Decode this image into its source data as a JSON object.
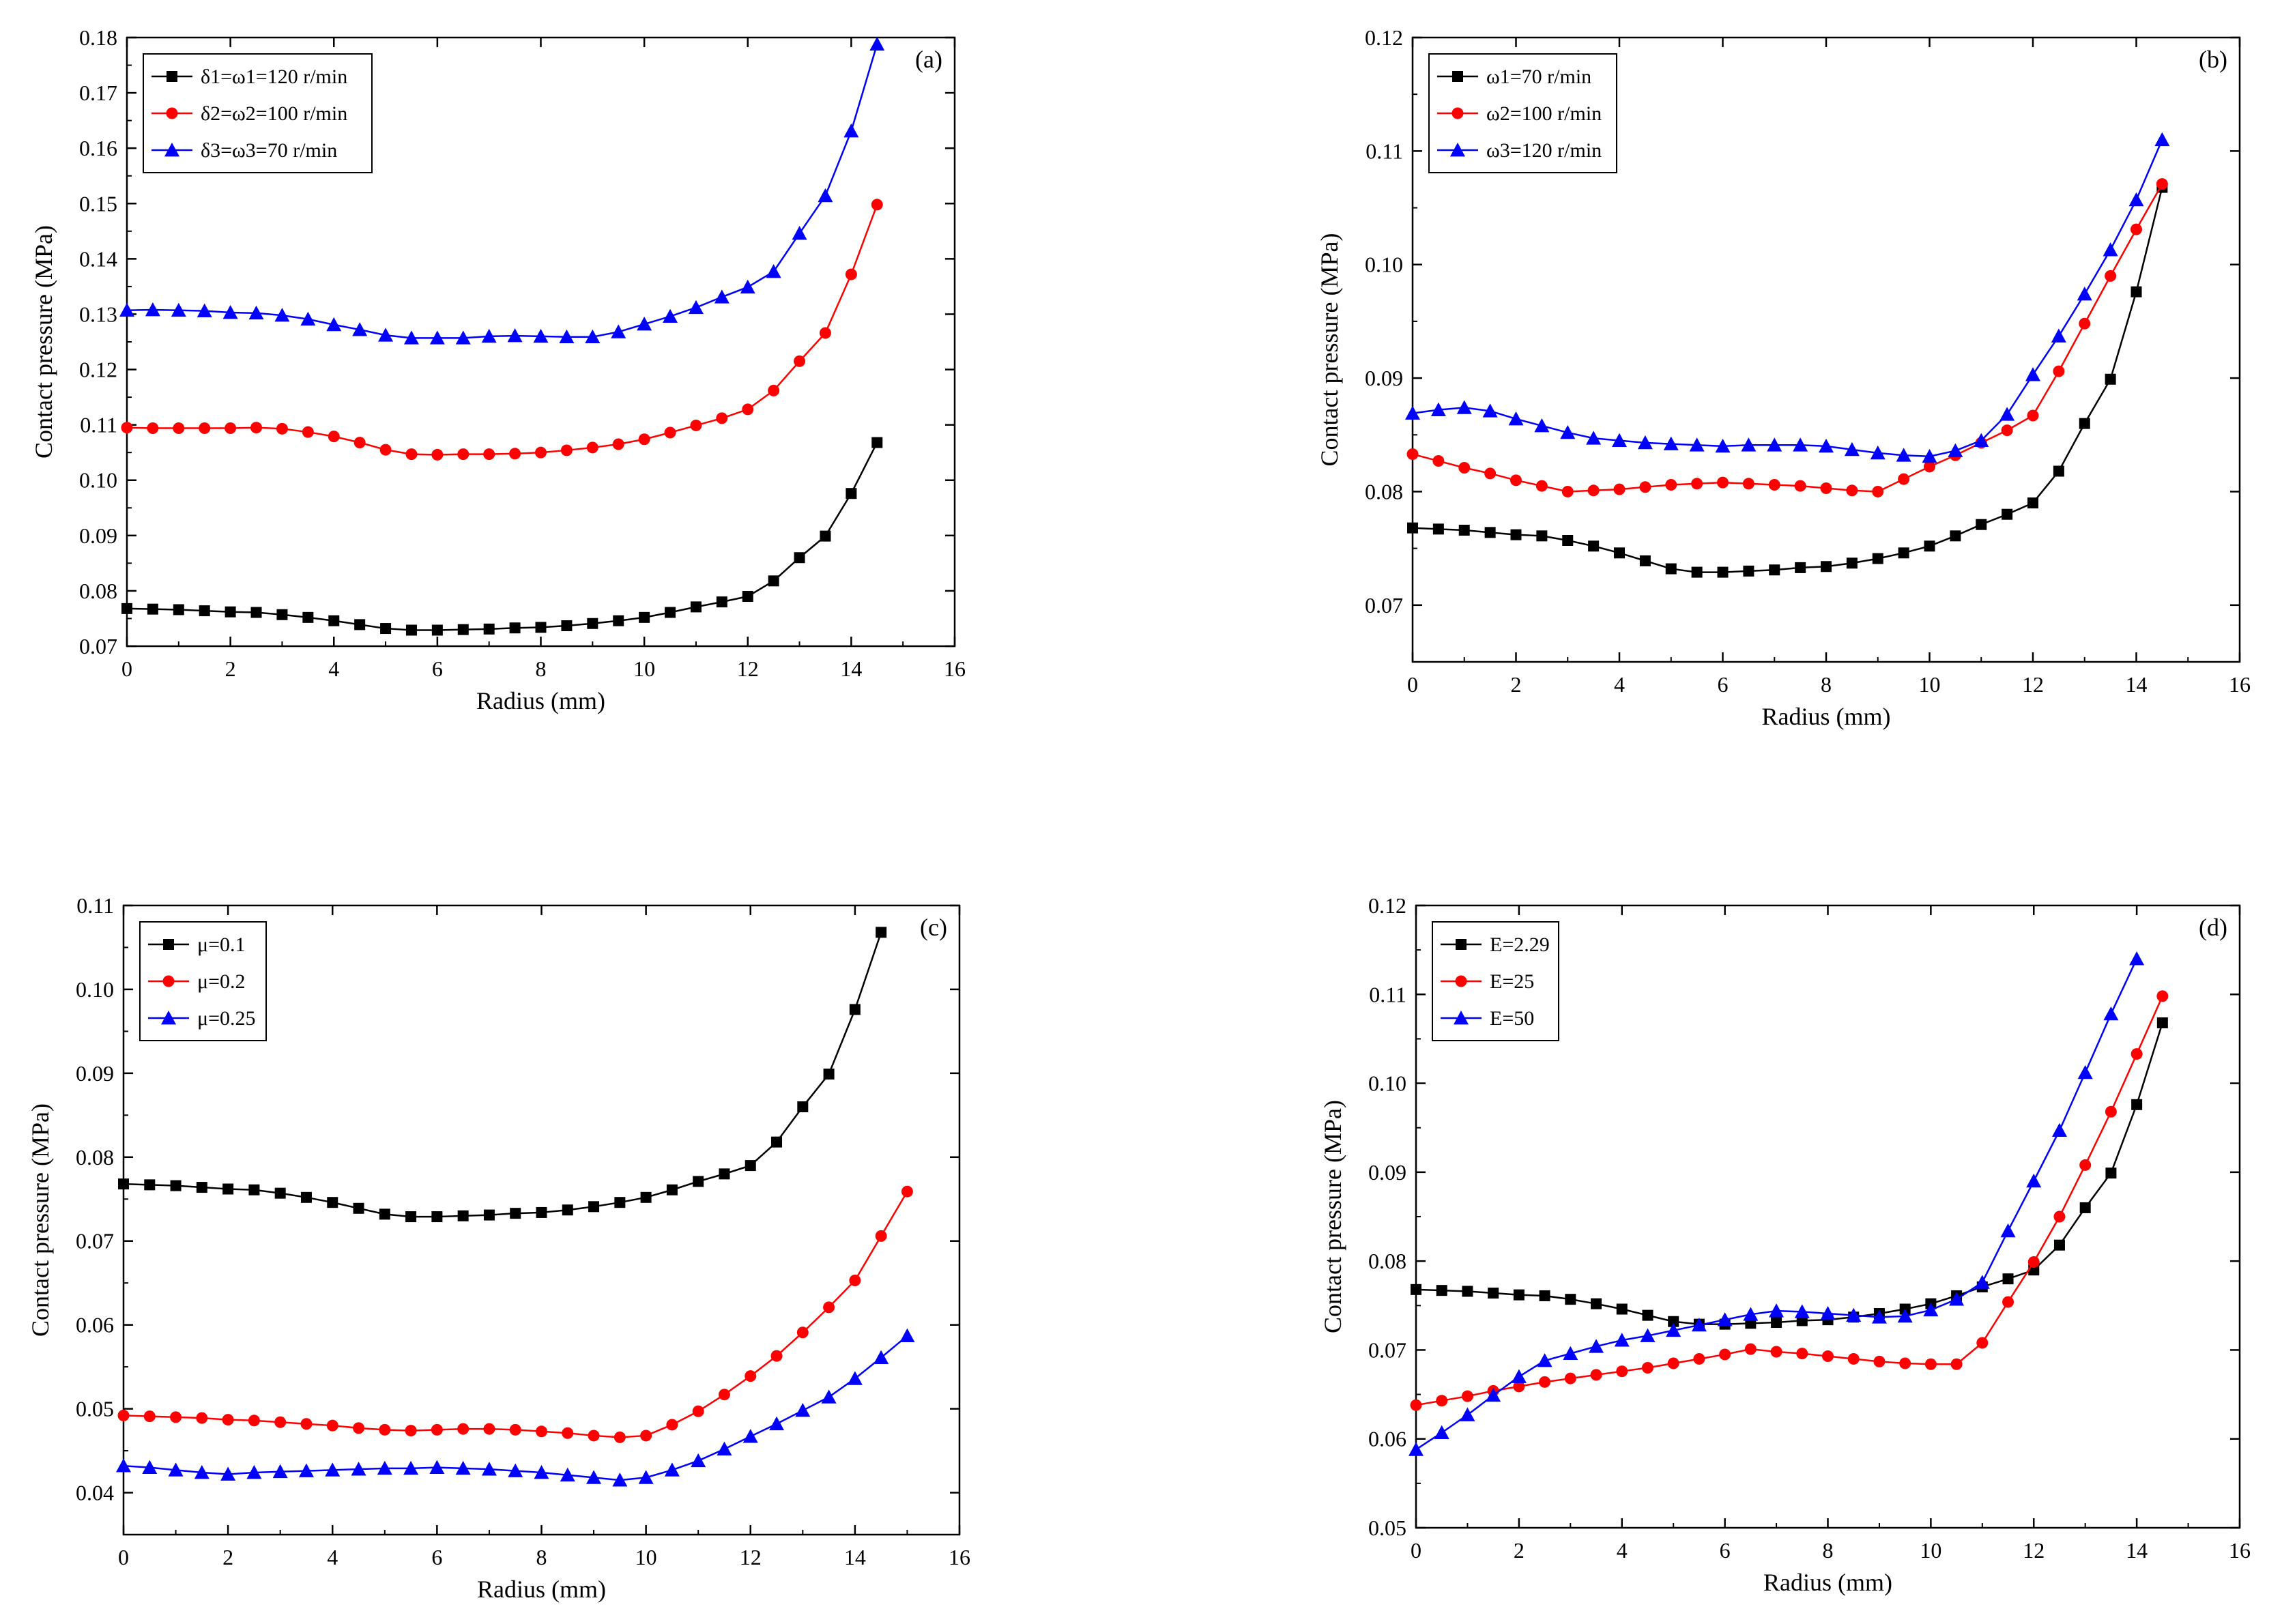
{
  "chart_data": [
    {
      "type": "line",
      "panel_label": "(a)",
      "xlabel": "Radius (mm)",
      "ylabel": "Contact pressure (MPa)",
      "xlim": [
        0,
        16
      ],
      "ylim": [
        0.07,
        0.18
      ],
      "xticks": [
        0,
        2,
        4,
        6,
        8,
        10,
        12,
        14,
        16
      ],
      "xtick_labels": [
        "0",
        "2",
        "4",
        "6",
        "8",
        "10",
        "12",
        "14",
        "16"
      ],
      "yticks": [
        0.07,
        0.08,
        0.09,
        0.1,
        0.11,
        0.12,
        0.13,
        0.14,
        0.15,
        0.16,
        0.17,
        0.18
      ],
      "ytick_labels": [
        "0.07",
        "0.08",
        "0.09",
        "0.10",
        "0.11",
        "0.12",
        "0.13",
        "0.14",
        "0.15",
        "0.16",
        "0.17",
        "0.18"
      ],
      "grid": false,
      "legend_position": "top-left",
      "x": [
        0,
        0.5,
        1,
        1.5,
        2,
        2.5,
        3,
        3.5,
        4,
        4.5,
        5,
        5.5,
        6,
        6.5,
        7,
        7.5,
        8,
        8.5,
        9,
        9.5,
        10,
        10.5,
        11,
        11.5,
        12,
        12.5,
        13,
        13.5,
        14,
        14.5
      ],
      "series": [
        {
          "name": "δ1=ω1=120 r/min",
          "color": "#000000",
          "marker": "square",
          "values": [
            0.0768,
            0.0767,
            0.0766,
            0.0764,
            0.0762,
            0.0761,
            0.0757,
            0.0752,
            0.0746,
            0.0739,
            0.0732,
            0.0729,
            0.0729,
            0.073,
            0.0731,
            0.0733,
            0.0734,
            0.0737,
            0.0741,
            0.0746,
            0.0752,
            0.0761,
            0.0771,
            0.078,
            0.079,
            0.0818,
            0.086,
            0.0899,
            0.0976,
            0.1068
          ]
        },
        {
          "name": "δ2=ω2=100 r/min",
          "color": "#ff0000",
          "marker": "circle",
          "values": [
            0.1095,
            0.1094,
            0.1094,
            0.1094,
            0.1094,
            0.1095,
            0.1093,
            0.1087,
            0.1079,
            0.1068,
            0.1055,
            0.1047,
            0.1046,
            0.1047,
            0.1047,
            0.1048,
            0.105,
            0.1054,
            0.1059,
            0.1065,
            0.1074,
            0.1086,
            0.1099,
            0.1112,
            0.1128,
            0.1162,
            0.1215,
            0.1266,
            0.1372,
            0.1498
          ]
        },
        {
          "name": "δ3=ω3=70   r/min",
          "color": "#0000ff",
          "marker": "triangle",
          "values": [
            0.1307,
            0.1308,
            0.1307,
            0.1306,
            0.1303,
            0.1302,
            0.1298,
            0.1291,
            0.1281,
            0.1272,
            0.1262,
            0.1257,
            0.1257,
            0.1257,
            0.126,
            0.1261,
            0.126,
            0.1259,
            0.1259,
            0.1268,
            0.1282,
            0.1296,
            0.1312,
            0.1331,
            0.1349,
            0.1377,
            0.1446,
            0.1514,
            0.1631,
            0.1788
          ]
        }
      ]
    },
    {
      "type": "line",
      "panel_label": "(b)",
      "xlabel": "Radius (mm)",
      "ylabel": "Contact pressure (MPa)",
      "xlim": [
        0,
        16
      ],
      "ylim": [
        0.065,
        0.12
      ],
      "xticks": [
        0,
        2,
        4,
        6,
        8,
        10,
        12,
        14,
        16
      ],
      "xtick_labels": [
        "0",
        "2",
        "4",
        "6",
        "8",
        "10",
        "12",
        "14",
        "16"
      ],
      "yticks": [
        0.07,
        0.08,
        0.09,
        0.1,
        0.11,
        0.12
      ],
      "ytick_labels": [
        "0.07",
        "0.08",
        "0.09",
        "0.10",
        "0.11",
        "0.12"
      ],
      "grid": false,
      "legend_position": "top-left",
      "x": [
        0,
        0.5,
        1,
        1.5,
        2,
        2.5,
        3,
        3.5,
        4,
        4.5,
        5,
        5.5,
        6,
        6.5,
        7,
        7.5,
        8,
        8.5,
        9,
        9.5,
        10,
        10.5,
        11,
        11.5,
        12,
        12.5,
        13,
        13.5,
        14,
        14.5
      ],
      "series": [
        {
          "name": "ω1=70 r/min",
          "color": "#000000",
          "marker": "square",
          "values": [
            0.0768,
            0.0767,
            0.0766,
            0.0764,
            0.0762,
            0.0761,
            0.0757,
            0.0752,
            0.0746,
            0.0739,
            0.0732,
            0.0729,
            0.0729,
            0.073,
            0.0731,
            0.0733,
            0.0734,
            0.0737,
            0.0741,
            0.0746,
            0.0752,
            0.0761,
            0.0771,
            0.078,
            0.079,
            0.0818,
            0.086,
            0.0899,
            0.0976,
            0.1068
          ]
        },
        {
          "name": "ω2=100 r/min",
          "color": "#ff0000",
          "marker": "circle",
          "values": [
            0.0833,
            0.0827,
            0.0821,
            0.0816,
            0.081,
            0.0805,
            0.08,
            0.0801,
            0.0802,
            0.0804,
            0.0806,
            0.0807,
            0.0808,
            0.0807,
            0.0806,
            0.0805,
            0.0803,
            0.0801,
            0.08,
            0.0811,
            0.0822,
            0.0832,
            0.0843,
            0.0854,
            0.0867,
            0.0906,
            0.0948,
            0.099,
            0.1031,
            0.1071
          ]
        },
        {
          "name": "ω3=120 r/min",
          "color": "#0000ff",
          "marker": "triangle",
          "values": [
            0.0869,
            0.0872,
            0.0874,
            0.0871,
            0.0864,
            0.0858,
            0.0852,
            0.0847,
            0.0845,
            0.0843,
            0.0842,
            0.0841,
            0.084,
            0.0841,
            0.0841,
            0.0841,
            0.084,
            0.0837,
            0.0834,
            0.0832,
            0.0831,
            0.0836,
            0.0845,
            0.0868,
            0.0903,
            0.0937,
            0.0974,
            0.1013,
            0.1057,
            0.111
          ]
        }
      ]
    },
    {
      "type": "line",
      "panel_label": "(c)",
      "xlabel": "Radius (mm)",
      "ylabel": "Contact pressure (MPa)",
      "xlim": [
        0,
        16
      ],
      "ylim": [
        0.035,
        0.11
      ],
      "xticks": [
        0,
        2,
        4,
        6,
        8,
        10,
        12,
        14,
        16
      ],
      "xtick_labels": [
        "0",
        "2",
        "4",
        "6",
        "8",
        "10",
        "12",
        "14",
        "16"
      ],
      "yticks": [
        0.04,
        0.05,
        0.06,
        0.07,
        0.08,
        0.09,
        0.1,
        0.11
      ],
      "ytick_labels": [
        "0.04",
        "0.05",
        "0.06",
        "0.07",
        "0.08",
        "0.09",
        "0.10",
        "0.11"
      ],
      "grid": false,
      "legend_position": "top-left",
      "x": [
        0,
        0.5,
        1,
        1.5,
        2,
        2.5,
        3,
        3.5,
        4,
        4.5,
        5,
        5.5,
        6,
        6.5,
        7,
        7.5,
        8,
        8.5,
        9,
        9.5,
        10,
        10.5,
        11,
        11.5,
        12,
        12.5,
        13,
        13.5,
        14,
        14.5,
        15
      ],
      "series": [
        {
          "name": "μ=0.1",
          "color": "#000000",
          "marker": "square",
          "values": [
            0.0768,
            0.0767,
            0.0766,
            0.0764,
            0.0762,
            0.0761,
            0.0757,
            0.0752,
            0.0746,
            0.0739,
            0.0732,
            0.0729,
            0.0729,
            0.073,
            0.0731,
            0.0733,
            0.0734,
            0.0737,
            0.0741,
            0.0746,
            0.0752,
            0.0761,
            0.0771,
            0.078,
            0.079,
            0.0818,
            0.086,
            0.0899,
            0.0976,
            0.1068,
            null
          ]
        },
        {
          "name": "μ=0.2",
          "color": "#ff0000",
          "marker": "circle",
          "values": [
            0.0492,
            0.0491,
            0.049,
            0.0489,
            0.0487,
            0.0486,
            0.0484,
            0.0482,
            0.048,
            0.0477,
            0.0475,
            0.0474,
            0.0475,
            0.0476,
            0.0476,
            0.0475,
            0.0473,
            0.0471,
            0.0468,
            0.0466,
            0.0468,
            0.0481,
            0.0497,
            0.0517,
            0.0539,
            0.0563,
            0.0591,
            0.0621,
            0.0653,
            0.0706,
            0.0759
          ]
        },
        {
          "name": "μ=0.25",
          "color": "#0000ff",
          "marker": "triangle",
          "values": [
            0.0432,
            0.043,
            0.0427,
            0.0424,
            0.0422,
            0.0424,
            0.0425,
            0.0426,
            0.0427,
            0.0428,
            0.0429,
            0.0429,
            0.043,
            0.0429,
            0.0428,
            0.0426,
            0.0424,
            0.0421,
            0.0418,
            0.0415,
            0.0418,
            0.0427,
            0.0438,
            0.0452,
            0.0467,
            0.0482,
            0.0498,
            0.0514,
            0.0536,
            0.0561,
            0.0587
          ]
        }
      ]
    },
    {
      "type": "line",
      "panel_label": "(d)",
      "xlabel": "Radius (mm)",
      "ylabel": "Contact pressure (MPa)",
      "xlim": [
        0,
        16
      ],
      "ylim": [
        0.05,
        0.12
      ],
      "xticks": [
        0,
        2,
        4,
        6,
        8,
        10,
        12,
        14,
        16
      ],
      "xtick_labels": [
        "0",
        "2",
        "4",
        "6",
        "8",
        "10",
        "12",
        "14",
        "16"
      ],
      "yticks": [
        0.05,
        0.06,
        0.07,
        0.08,
        0.09,
        0.1,
        0.11,
        0.12
      ],
      "ytick_labels": [
        "0.05",
        "0.06",
        "0.07",
        "0.08",
        "0.09",
        "0.10",
        "0.11",
        "0.12"
      ],
      "grid": false,
      "legend_position": "top-left",
      "x": [
        0,
        0.5,
        1,
        1.5,
        2,
        2.5,
        3,
        3.5,
        4,
        4.5,
        5,
        5.5,
        6,
        6.5,
        7,
        7.5,
        8,
        8.5,
        9,
        9.5,
        10,
        10.5,
        11,
        11.5,
        12,
        12.5,
        13,
        13.5,
        14,
        14.5
      ],
      "series": [
        {
          "name": "E=2.29",
          "color": "#000000",
          "marker": "square",
          "values": [
            0.0768,
            0.0767,
            0.0766,
            0.0764,
            0.0762,
            0.0761,
            0.0757,
            0.0752,
            0.0746,
            0.0739,
            0.0732,
            0.0729,
            0.0729,
            0.073,
            0.0731,
            0.0733,
            0.0734,
            0.0737,
            0.0741,
            0.0746,
            0.0752,
            0.0761,
            0.0771,
            0.078,
            0.079,
            0.0818,
            0.086,
            0.0899,
            0.0976,
            0.1068
          ]
        },
        {
          "name": "E=25",
          "color": "#ff0000",
          "marker": "circle",
          "values": [
            0.0638,
            0.0643,
            0.0648,
            0.0654,
            0.0659,
            0.0664,
            0.0668,
            0.0672,
            0.0676,
            0.068,
            0.0685,
            0.069,
            0.0695,
            0.0701,
            0.0698,
            0.0696,
            0.0693,
            0.069,
            0.0687,
            0.0685,
            0.0684,
            0.0684,
            0.0708,
            0.0754,
            0.0799,
            0.085,
            0.0908,
            0.0968,
            0.1033,
            0.1098
          ]
        },
        {
          "name": "E=50",
          "color": "#0000ff",
          "marker": "triangle",
          "values": [
            0.0588,
            0.0607,
            0.0627,
            0.0649,
            0.067,
            0.0688,
            0.0696,
            0.0704,
            0.0711,
            0.0716,
            0.0722,
            0.0728,
            0.0734,
            0.074,
            0.0744,
            0.0743,
            0.0741,
            0.0739,
            0.0737,
            0.0738,
            0.0745,
            0.0757,
            0.0776,
            0.0834,
            0.089,
            0.0947,
            0.1012,
            0.1078,
            0.114,
            null
          ]
        }
      ]
    }
  ]
}
